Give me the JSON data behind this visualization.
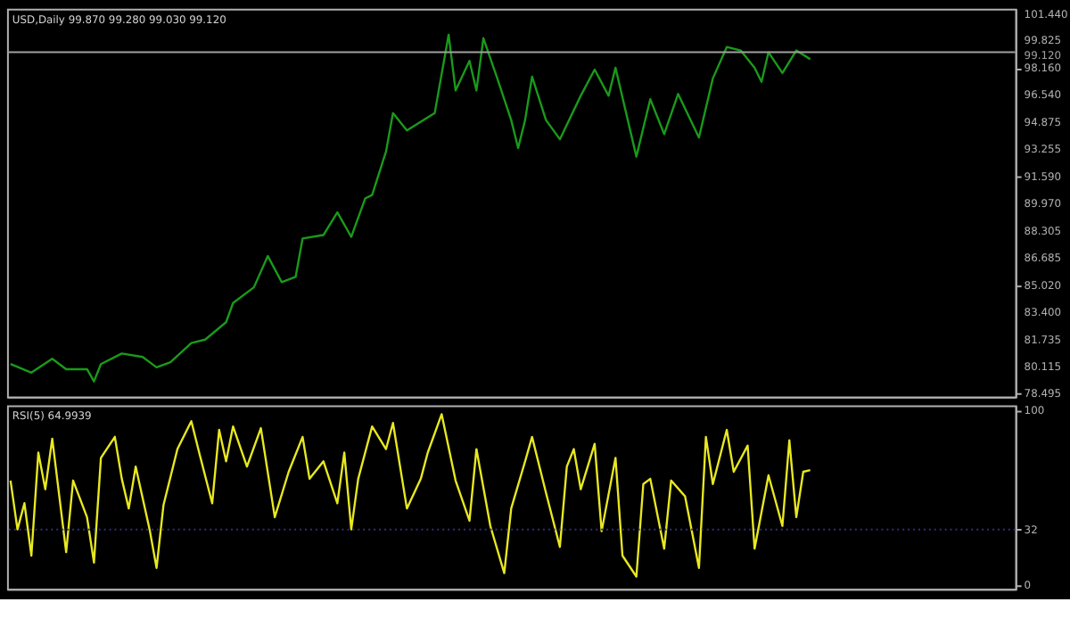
{
  "chart_data": [
    {
      "type": "line",
      "title": "USD,Daily 99.870 99.280 99.030 99.120",
      "tick_labels": "y",
      "ylim": [
        78.3,
        101.75
      ],
      "categories": [
        null,
        null,
        null,
        null,
        null,
        null,
        null,
        null,
        null,
        null,
        null,
        null,
        null,
        null,
        null,
        null,
        null,
        null,
        null,
        null,
        null,
        null,
        null,
        null,
        null,
        null,
        null,
        null,
        null,
        null,
        null,
        null,
        null,
        null,
        null,
        null,
        null,
        null,
        null,
        null,
        null,
        null,
        null,
        null,
        null,
        null,
        null,
        null,
        null,
        null,
        null,
        null,
        null,
        null,
        null,
        null,
        null,
        null,
        null,
        null,
        null,
        null,
        null,
        null,
        null,
        null,
        null,
        null,
        null,
        null,
        null,
        null,
        null,
        null,
        null,
        null,
        null,
        null,
        null,
        null,
        null,
        null,
        null,
        null,
        null,
        null,
        null,
        null,
        null,
        null,
        null,
        null,
        null,
        null,
        null,
        null,
        null,
        null,
        null,
        null,
        null,
        null,
        null,
        null,
        null,
        null,
        null,
        null,
        null,
        null,
        null,
        null,
        null,
        null,
        null,
        null,
        null,
        null,
        null,
        null,
        null,
        null,
        null,
        null,
        null,
        null,
        null,
        null,
        null,
        null,
        null,
        null,
        null,
        null,
        null,
        null,
        null,
        null,
        null,
        null,
        null,
        null,
        null,
        null,
        null
      ],
      "yticks": [
        {
          "value": 101.44,
          "label": "101.440"
        },
        {
          "value": 99.825,
          "label": "99.825"
        },
        {
          "value": 98.16,
          "label": "98.160"
        },
        {
          "value": 96.54,
          "label": "96.540"
        },
        {
          "value": 94.875,
          "label": "94.875"
        },
        {
          "value": 93.255,
          "label": "93.255"
        },
        {
          "value": 91.59,
          "label": "91.590"
        },
        {
          "value": 89.97,
          "label": "89.970"
        },
        {
          "value": 88.305,
          "label": "88.305"
        },
        {
          "value": 86.685,
          "label": "86.685"
        },
        {
          "value": 85.02,
          "label": "85.020"
        },
        {
          "value": 83.4,
          "label": "83.400"
        },
        {
          "value": 81.735,
          "label": "81.735"
        },
        {
          "value": 80.115,
          "label": "80.115"
        },
        {
          "value": 78.495,
          "label": "78.495"
        }
      ],
      "ref_lines": [
        {
          "axis": "y",
          "value": 99.12,
          "label": "99.120",
          "color": "#a0a0a0"
        }
      ],
      "series": [
        {
          "color": "#1a9a1a",
          "values": [
            80.27,
            null,
            null,
            79.75,
            null,
            null,
            80.59,
            null,
            79.96,
            null,
            null,
            79.96,
            79.22,
            80.27,
            null,
            null,
            80.91,
            null,
            null,
            80.7,
            null,
            80.07,
            null,
            80.38,
            null,
            null,
            81.54,
            null,
            81.75,
            null,
            null,
            82.8,
            83.96,
            null,
            null,
            84.91,
            null,
            86.8,
            null,
            85.22,
            null,
            85.54,
            87.86,
            null,
            null,
            88.07,
            null,
            89.44,
            null,
            87.96,
            null,
            90.28,
            90.49,
            null,
            93.12,
            95.44,
            null,
            94.39,
            null,
            null,
            null,
            95.44,
            null,
            100.18,
            96.81,
            null,
            98.6,
            96.81,
            99.97,
            null,
            97.54,
            null,
            95.02,
            93.33,
            95.02,
            97.65,
            null,
            95.02,
            null,
            93.86,
            null,
            null,
            96.49,
            null,
            98.07,
            null,
            96.49,
            98.18,
            null,
            null,
            92.81,
            null,
            96.28,
            null,
            94.17,
            null,
            96.6,
            null,
            null,
            93.96,
            null,
            97.54,
            null,
            99.44,
            null,
            99.23,
            null,
            98.18,
            97.33,
            99.12,
            null,
            97.86,
            null,
            99.23,
            null,
            98.7,
            null,
            null,
            null,
            null,
            null,
            null,
            null,
            null,
            null,
            null,
            null,
            null,
            null,
            null,
            null,
            null,
            null,
            null,
            null,
            null,
            null,
            null,
            null,
            null,
            null,
            null,
            null,
            null,
            null
          ]
        }
      ]
    },
    {
      "type": "line",
      "title": "RSI(5) 64.9939",
      "tick_labels": "y",
      "ylim": [
        -2,
        103
      ],
      "yticks": [
        0,
        32,
        100
      ],
      "categories": [
        null,
        null,
        null,
        null,
        null,
        null,
        null,
        null,
        null,
        null,
        null,
        null,
        null,
        null,
        null,
        null,
        null,
        null,
        null,
        null,
        null,
        null,
        null,
        null,
        null,
        null,
        null,
        null,
        null,
        null,
        null,
        null,
        null,
        null,
        null,
        null,
        null,
        null,
        null,
        null,
        null,
        null,
        null,
        null,
        null,
        null,
        null,
        null,
        null,
        null,
        null,
        null,
        null,
        null,
        null,
        null,
        null,
        null,
        null,
        null,
        null,
        null,
        null,
        null,
        null,
        null,
        null,
        null,
        null,
        null,
        null,
        null,
        null,
        null,
        null,
        null,
        null,
        null,
        null,
        null,
        null,
        null,
        null,
        null,
        null,
        null,
        null,
        null,
        null,
        null,
        null,
        null,
        null,
        null,
        null,
        null,
        null,
        null,
        null,
        null,
        null,
        null,
        null,
        null,
        null,
        null,
        null,
        null,
        null,
        null,
        null,
        null,
        null,
        null,
        null,
        null,
        null,
        null,
        null,
        null,
        null,
        null,
        null,
        null,
        null,
        null,
        null,
        null,
        null,
        null,
        null,
        null,
        null,
        null,
        null,
        null,
        null,
        null,
        null,
        null,
        null,
        null,
        null,
        null,
        null
      ],
      "ref_lines": [
        {
          "axis": "y",
          "value": 32,
          "color": "#303080",
          "line_style": "dotted"
        }
      ],
      "series": [
        {
          "color": "#e8e820",
          "values": [
            60,
            32,
            47,
            17,
            76,
            55,
            84,
            null,
            19,
            60,
            null,
            39,
            13,
            73,
            null,
            85,
            61,
            44,
            68,
            null,
            32,
            10,
            46,
            null,
            78,
            null,
            94,
            78,
            null,
            47,
            89,
            71,
            91,
            null,
            68,
            null,
            90,
            null,
            39,
            null,
            65,
            null,
            85,
            61,
            null,
            71,
            null,
            47,
            76,
            32,
            61,
            null,
            91,
            null,
            78,
            93,
            null,
            44,
            null,
            61,
            76,
            null,
            98,
            null,
            60,
            null,
            37,
            78,
            null,
            34,
            null,
            7,
            44,
            null,
            71,
            85,
            null,
            53,
            null,
            22,
            68,
            78,
            55,
            null,
            81,
            31,
            null,
            73,
            17,
            null,
            5,
            58,
            61,
            null,
            21,
            60,
            null,
            51,
            null,
            10,
            85,
            58,
            null,
            89,
            65,
            null,
            80,
            21,
            null,
            63,
            null,
            34,
            83,
            39,
            65,
            66,
            null,
            null,
            null,
            null,
            null,
            null,
            null,
            null,
            null,
            null,
            null,
            null,
            null,
            null,
            null,
            null,
            null,
            null,
            null,
            null,
            null,
            null,
            null,
            null,
            null,
            null,
            null,
            null,
            null
          ]
        }
      ]
    }
  ]
}
